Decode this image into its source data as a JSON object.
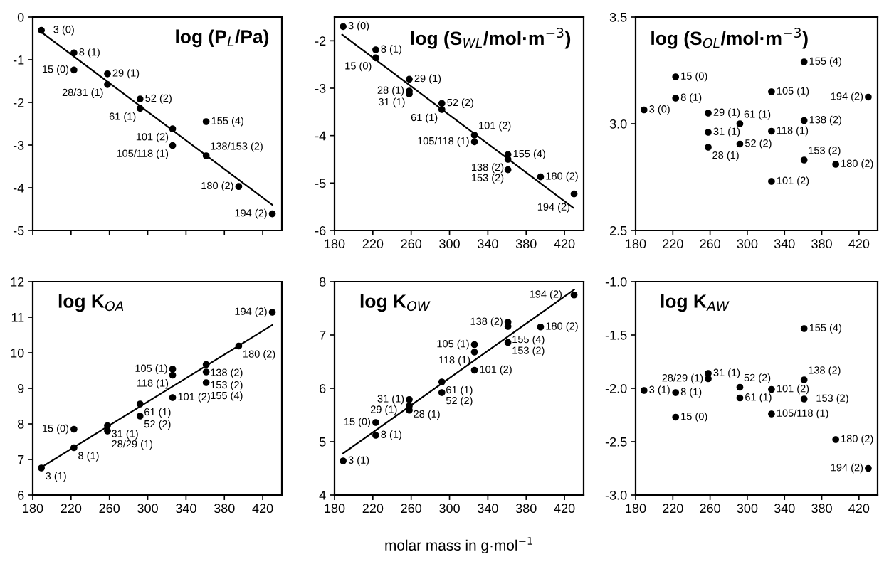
{
  "chart_data": [
    {
      "type": "scatter",
      "title": "log (P$_{L}$/Pa)",
      "xlim": [
        180,
        440
      ],
      "xticks": [
        180,
        220,
        260,
        300,
        340,
        380,
        420
      ],
      "ylim": [
        -5,
        0
      ],
      "yticks": [
        -5,
        -4,
        -3,
        -2,
        -1,
        0
      ],
      "grid": false,
      "tick_labels": "y",
      "series": [
        {
          "type": "scatter",
          "color": "#000000",
          "marker": "circle",
          "x": [
            189,
            223,
            223,
            258,
            258,
            292,
            292,
            326,
            361,
            326,
            361,
            395,
            430
          ],
          "values": [
            -0.31,
            -0.84,
            -1.24,
            -1.33,
            -1.58,
            -1.92,
            -2.14,
            -2.62,
            -2.45,
            -3.01,
            -3.25,
            -3.97,
            -4.61
          ]
        },
        {
          "type": "line",
          "color": "#000000",
          "marker": "none",
          "x": [
            190,
            430
          ],
          "values": [
            -0.37,
            -4.4
          ]
        }
      ],
      "annotations": [
        {
          "text": "3 (0)",
          "x": 189,
          "y": -0.31
        },
        {
          "text": "8 (1)",
          "x": 223,
          "y": -0.84
        },
        {
          "text": "15 (0)",
          "x": 223,
          "y": -1.24
        },
        {
          "text": "29 (1)",
          "x": 258,
          "y": -1.33
        },
        {
          "text": "28/31 (1)",
          "x": 258,
          "y": -1.58
        },
        {
          "text": "52 (2)",
          "x": 292,
          "y": -1.92
        },
        {
          "text": "61 (1)",
          "x": 292,
          "y": -2.14
        },
        {
          "text": "101 (2)",
          "x": 326,
          "y": -2.62
        },
        {
          "text": "155 (4)",
          "x": 361,
          "y": -2.45
        },
        {
          "text": "105/118 (1)",
          "x": 326,
          "y": -3.01
        },
        {
          "text": "138/153 (2)",
          "x": 361,
          "y": -3.25
        },
        {
          "text": "180 (2)",
          "x": 395,
          "y": -3.97
        },
        {
          "text": "194 (2)",
          "x": 430,
          "y": -4.61
        }
      ]
    },
    {
      "type": "scatter",
      "title": "log (S$_{WL}$/mol·m$^{−3}$)",
      "xlim": [
        180,
        440
      ],
      "xticks": [
        180,
        220,
        260,
        300,
        340,
        380,
        420
      ],
      "ylim": [
        -6,
        -1.5
      ],
      "yticks": [
        -6,
        -5,
        -4,
        -3,
        -2
      ],
      "grid": false,
      "series": [
        {
          "type": "scatter",
          "color": "#000000",
          "marker": "circle",
          "x": [
            189,
            223,
            223,
            258,
            258,
            258,
            292,
            292,
            326,
            326,
            361,
            361,
            361,
            395,
            430
          ],
          "values": [
            -1.7,
            -2.19,
            -2.36,
            -2.81,
            -3.06,
            -3.12,
            -3.32,
            -3.45,
            -3.99,
            -4.13,
            -4.4,
            -4.5,
            -4.72,
            -4.87,
            -5.23
          ]
        },
        {
          "type": "line",
          "color": "#000000",
          "marker": "none",
          "x": [
            188,
            429
          ],
          "values": [
            -1.87,
            -5.52
          ]
        }
      ],
      "annotations": [
        {
          "text": "3 (0)",
          "x": 189,
          "y": -1.7
        },
        {
          "text": "8 (1)",
          "x": 223,
          "y": -2.19
        },
        {
          "text": "15 (0)",
          "x": 223,
          "y": -2.36
        },
        {
          "text": "29 (1)",
          "x": 258,
          "y": -2.81
        },
        {
          "text": "28 (1)",
          "x": 258,
          "y": -3.06
        },
        {
          "text": "31 (1)",
          "x": 258,
          "y": -3.12
        },
        {
          "text": "52 (2)",
          "x": 292,
          "y": -3.32
        },
        {
          "text": "61 (1)",
          "x": 292,
          "y": -3.45
        },
        {
          "text": "101 (2)",
          "x": 326,
          "y": -3.99
        },
        {
          "text": "105/118 (1)",
          "x": 326,
          "y": -4.13
        },
        {
          "text": "155 (4)",
          "x": 361,
          "y": -4.4
        },
        {
          "text": "138 (2)",
          "x": 361,
          "y": -4.5
        },
        {
          "text": "153 (2)",
          "x": 361,
          "y": -4.72
        },
        {
          "text": "180 (2)",
          "x": 395,
          "y": -4.87
        },
        {
          "text": "194 (2)",
          "x": 430,
          "y": -5.23
        }
      ]
    },
    {
      "type": "scatter",
      "title": "log (S$_{OL}$/mol·m$^{−3}$)",
      "xlim": [
        180,
        440
      ],
      "xticks": [
        180,
        220,
        260,
        300,
        340,
        380,
        420
      ],
      "ylim": [
        2.5,
        3.5
      ],
      "yticks": [
        {
          "value": 2.5,
          "label": "2.5"
        },
        {
          "value": 3.0,
          "label": "3.0"
        },
        {
          "value": 3.5,
          "label": "3.5"
        }
      ],
      "grid": false,
      "series": [
        {
          "type": "scatter",
          "color": "#000000",
          "marker": "circle",
          "x": [
            189,
            223,
            223,
            258,
            258,
            258,
            292,
            292,
            326,
            326,
            326,
            361,
            361,
            361,
            395,
            430
          ],
          "values": [
            3.065,
            3.22,
            3.12,
            3.05,
            2.96,
            2.89,
            3.0,
            2.905,
            2.73,
            3.15,
            2.965,
            3.29,
            3.015,
            2.83,
            2.81,
            3.125
          ]
        }
      ],
      "annotations": [
        {
          "text": "3 (0)",
          "x": 189,
          "y": 3.065
        },
        {
          "text": "15 (0)",
          "x": 223,
          "y": 3.22
        },
        {
          "text": "8 (1)",
          "x": 223,
          "y": 3.12
        },
        {
          "text": "29 (1)",
          "x": 258,
          "y": 3.05
        },
        {
          "text": "31 (1)",
          "x": 258,
          "y": 2.96
        },
        {
          "text": "28 (1)",
          "x": 258,
          "y": 2.89
        },
        {
          "text": "61 (1)",
          "x": 292,
          "y": 3.0
        },
        {
          "text": "52 (2)",
          "x": 292,
          "y": 2.905
        },
        {
          "text": "101 (2)",
          "x": 326,
          "y": 2.73
        },
        {
          "text": "105 (1)",
          "x": 326,
          "y": 3.15
        },
        {
          "text": "118 (1)",
          "x": 326,
          "y": 2.965
        },
        {
          "text": "155 (4)",
          "x": 361,
          "y": 3.29
        },
        {
          "text": "138 (2)",
          "x": 361,
          "y": 3.015
        },
        {
          "text": "153 (2)",
          "x": 361,
          "y": 2.83
        },
        {
          "text": "180 (2)",
          "x": 395,
          "y": 2.81
        },
        {
          "text": "194 (2)",
          "x": 430,
          "y": 3.125
        }
      ]
    },
    {
      "type": "scatter",
      "title": "log K$_{OA}$",
      "xlim": [
        180,
        440
      ],
      "xticks": [
        180,
        220,
        260,
        300,
        340,
        380,
        420
      ],
      "ylim": [
        6,
        12
      ],
      "yticks": [
        6,
        7,
        8,
        9,
        10,
        11,
        12
      ],
      "grid": false,
      "series": [
        {
          "type": "scatter",
          "color": "#000000",
          "marker": "circle",
          "x": [
            189,
            223,
            223,
            258,
            258,
            292,
            292,
            326,
            326,
            326,
            361,
            361,
            361,
            395,
            430
          ],
          "values": [
            6.76,
            7.33,
            7.85,
            7.95,
            7.8,
            8.56,
            8.22,
            8.74,
            9.54,
            9.37,
            9.67,
            9.46,
            9.16,
            10.19,
            11.14
          ]
        },
        {
          "type": "line",
          "color": "#000000",
          "marker": "none",
          "x": [
            189,
            430
          ],
          "values": [
            6.78,
            10.78
          ]
        }
      ],
      "annotations": [
        {
          "text": "3 (1)",
          "x": 189,
          "y": 6.76
        },
        {
          "text": "8 (1)",
          "x": 223,
          "y": 7.33
        },
        {
          "text": "15 (0)",
          "x": 223,
          "y": 7.85
        },
        {
          "text": "31 (1)",
          "x": 258,
          "y": 7.95
        },
        {
          "text": "28/29 (1)",
          "x": 258,
          "y": 7.8
        },
        {
          "text": "61 (1)",
          "x": 292,
          "y": 8.56
        },
        {
          "text": "52 (2)",
          "x": 292,
          "y": 8.22
        },
        {
          "text": "101 (2)",
          "x": 326,
          "y": 8.74
        },
        {
          "text": "105 (1)",
          "x": 326,
          "y": 9.54
        },
        {
          "text": "118 (1)",
          "x": 326,
          "y": 9.37
        },
        {
          "text": "138 (2)",
          "x": 361,
          "y": 9.67
        },
        {
          "text": "153 (2)",
          "x": 361,
          "y": 9.46
        },
        {
          "text": "155 (4)",
          "x": 361,
          "y": 9.16
        },
        {
          "text": "180 (2)",
          "x": 395,
          "y": 10.19
        },
        {
          "text": "194 (2)",
          "x": 430,
          "y": 11.14
        }
      ]
    },
    {
      "type": "scatter",
      "title": "log K$_{OW}$",
      "xlabel": "molar mass in g·mol$^{−1}$",
      "xlim": [
        180,
        440
      ],
      "xticks": [
        180,
        220,
        260,
        300,
        340,
        380,
        420
      ],
      "ylim": [
        4,
        8
      ],
      "yticks": [
        4,
        5,
        6,
        7,
        8
      ],
      "grid": false,
      "series": [
        {
          "type": "scatter",
          "color": "#000000",
          "marker": "circle",
          "x": [
            189,
            223,
            223,
            258,
            258,
            258,
            292,
            292,
            326,
            326,
            326,
            361,
            361,
            361,
            395,
            430
          ],
          "values": [
            4.64,
            5.12,
            5.36,
            5.79,
            5.67,
            5.59,
            6.12,
            5.92,
            6.34,
            6.82,
            6.68,
            7.24,
            7.16,
            6.86,
            7.15,
            7.75
          ]
        },
        {
          "type": "line",
          "color": "#000000",
          "marker": "none",
          "x": [
            189,
            430
          ],
          "values": [
            4.78,
            7.85
          ]
        }
      ],
      "annotations": [
        {
          "text": "3 (1)",
          "x": 189,
          "y": 4.64
        },
        {
          "text": "8 (1)",
          "x": 223,
          "y": 5.12
        },
        {
          "text": "15 (0)",
          "x": 223,
          "y": 5.36
        },
        {
          "text": "31 (1)",
          "x": 258,
          "y": 5.79
        },
        {
          "text": "28 (1)",
          "x": 258,
          "y": 5.67
        },
        {
          "text": "29 (1)",
          "x": 258,
          "y": 5.59
        },
        {
          "text": "61 (1)",
          "x": 292,
          "y": 6.12
        },
        {
          "text": "52 (2)",
          "x": 292,
          "y": 5.92
        },
        {
          "text": "101 (2)",
          "x": 326,
          "y": 6.34
        },
        {
          "text": "105 (1)",
          "x": 326,
          "y": 6.82
        },
        {
          "text": "118 (1)",
          "x": 326,
          "y": 6.68
        },
        {
          "text": "138 (2)",
          "x": 361,
          "y": 7.24
        },
        {
          "text": "155 (4)",
          "x": 361,
          "y": 7.16
        },
        {
          "text": "153 (2)",
          "x": 361,
          "y": 6.86
        },
        {
          "text": "180 (2)",
          "x": 395,
          "y": 7.15
        },
        {
          "text": "194 (2)",
          "x": 430,
          "y": 7.75
        }
      ]
    },
    {
      "type": "scatter",
      "title": "log K$_{AW}$",
      "xlim": [
        180,
        440
      ],
      "xticks": [
        180,
        220,
        260,
        300,
        340,
        380,
        420
      ],
      "ylim": [
        -3,
        -1
      ],
      "yticks": [
        {
          "value": -3,
          "label": "-3.0"
        },
        {
          "value": -2.5,
          "label": "-2.5"
        },
        {
          "value": -2,
          "label": "-2.0"
        },
        {
          "value": -1.5,
          "label": "-1.5"
        },
        {
          "value": -1,
          "label": "-1.0"
        }
      ],
      "grid": false,
      "series": [
        {
          "type": "scatter",
          "color": "#000000",
          "marker": "circle",
          "x": [
            189,
            223,
            223,
            258,
            258,
            292,
            292,
            326,
            326,
            361,
            361,
            361,
            395,
            430
          ],
          "values": [
            -2.02,
            -2.04,
            -2.27,
            -1.86,
            -1.91,
            -1.99,
            -2.09,
            -2.01,
            -2.24,
            -1.44,
            -1.92,
            -2.1,
            -2.48,
            -2.75
          ]
        }
      ],
      "annotations": [
        {
          "text": "3 (1)",
          "x": 189,
          "y": -2.02
        },
        {
          "text": "8 (1)",
          "x": 223,
          "y": -2.04
        },
        {
          "text": "15 (0)",
          "x": 223,
          "y": -2.27
        },
        {
          "text": "31 (1)",
          "x": 258,
          "y": -1.86
        },
        {
          "text": "28/29 (1)",
          "x": 258,
          "y": -1.91
        },
        {
          "text": "52 (2)",
          "x": 292,
          "y": -1.99
        },
        {
          "text": "61 (1)",
          "x": 292,
          "y": -2.09
        },
        {
          "text": "101 (2)",
          "x": 326,
          "y": -2.01
        },
        {
          "text": "105/118 (1)",
          "x": 326,
          "y": -2.24
        },
        {
          "text": "155 (4)",
          "x": 361,
          "y": -1.44
        },
        {
          "text": "138 (2)",
          "x": 361,
          "y": -1.92
        },
        {
          "text": "153 (2)",
          "x": 361,
          "y": -2.1
        },
        {
          "text": "180 (2)",
          "x": 395,
          "y": -2.48
        },
        {
          "text": "194 (2)",
          "x": 430,
          "y": -2.75
        }
      ]
    }
  ]
}
